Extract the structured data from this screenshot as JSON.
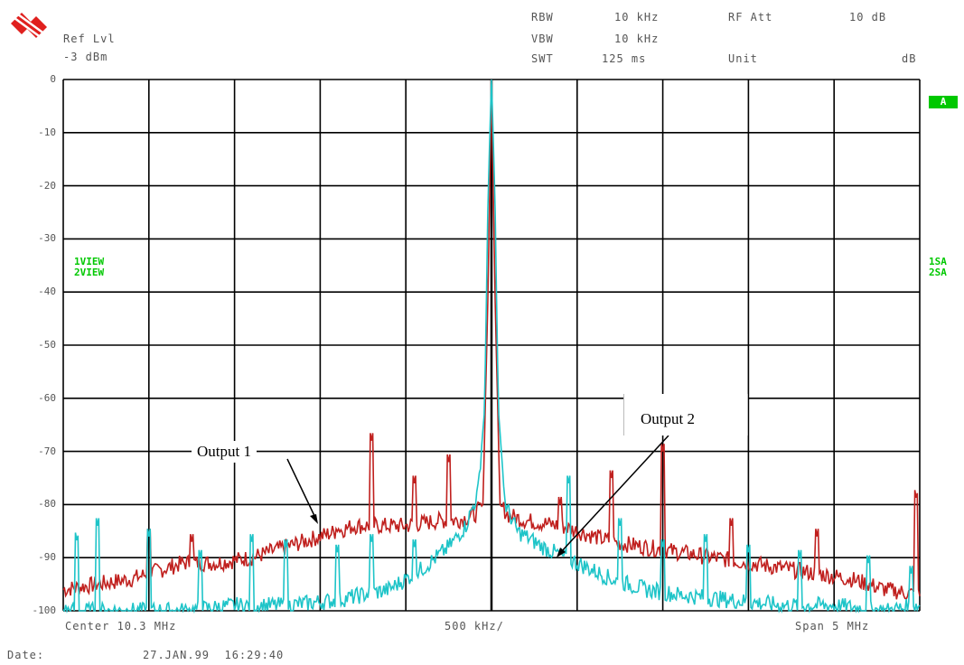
{
  "header": {
    "ref_label": "Ref Lvl",
    "ref_value": "-3 dBm",
    "rbw_label": "RBW",
    "rbw_value": "10 kHz",
    "vbw_label": "VBW",
    "vbw_value": "10 kHz",
    "swt_label": "SWT",
    "swt_value": "125 ms",
    "rf_att_label": "RF Att",
    "rf_att_value": "10 dB",
    "unit_label": "Unit",
    "unit_value": "dB"
  },
  "side": {
    "trace_a_badge": "A",
    "left_views": [
      "1VIEW",
      "2VIEW"
    ],
    "right_views": [
      "1SA",
      "2SA"
    ]
  },
  "footer": {
    "center": "Center 10.3 MHz",
    "div": "500 kHz/",
    "span": "Span 5 MHz",
    "date_label": "Date:",
    "date_value": "27.JAN.99  16:29:40"
  },
  "annotations": {
    "output1": "Output 1",
    "output2": "Output 2"
  },
  "colors": {
    "output1": "#c0201e",
    "output2": "#1ec4c8",
    "grid": "#000000",
    "green": "#00c800"
  },
  "chart_data": {
    "type": "line",
    "xlabel": "",
    "ylabel": "",
    "x_range_mhz": [
      7.8,
      12.8
    ],
    "ylim": [
      -100,
      0
    ],
    "yticks": [
      "0",
      "-10",
      "-20",
      "-30",
      "-40",
      "-50",
      "-60",
      "-70",
      "-80",
      "-90",
      "-100"
    ],
    "grid": true,
    "series": [
      {
        "name": "Output 1",
        "x": [
          7.8,
          8.0,
          8.2,
          8.3,
          8.5,
          8.7,
          8.9,
          9.1,
          9.3,
          9.5,
          9.6,
          9.8,
          10.0,
          10.1,
          10.2,
          10.25,
          10.28,
          10.3,
          10.32,
          10.35,
          10.4,
          10.5,
          10.7,
          10.9,
          11.0,
          11.2,
          11.4,
          11.6,
          11.8,
          12.0,
          12.2,
          12.4,
          12.6,
          12.8
        ],
        "values": [
          -96,
          -95,
          -94,
          -93,
          -91,
          -91,
          -90,
          -88,
          -86,
          -84,
          -84,
          -84,
          -83,
          -83,
          -82,
          -80,
          -40,
          0,
          -40,
          -80,
          -82,
          -83,
          -84,
          -86,
          -87,
          -88,
          -89,
          -90,
          -91,
          -92,
          -93,
          -94,
          -96,
          -97
        ],
        "spikes": [
          {
            "x": 8.3,
            "y": -86
          },
          {
            "x": 8.55,
            "y": -87
          },
          {
            "x": 9.4,
            "y": -86
          },
          {
            "x": 9.6,
            "y": -68
          },
          {
            "x": 9.85,
            "y": -76
          },
          {
            "x": 10.05,
            "y": -72
          },
          {
            "x": 10.7,
            "y": -80
          },
          {
            "x": 11.0,
            "y": -75
          },
          {
            "x": 11.3,
            "y": -70
          },
          {
            "x": 11.7,
            "y": -84
          },
          {
            "x": 12.2,
            "y": -86
          },
          {
            "x": 12.78,
            "y": -79
          }
        ]
      },
      {
        "name": "Output 2",
        "x": [
          7.8,
          8.0,
          8.2,
          8.5,
          8.8,
          9.1,
          9.4,
          9.7,
          9.9,
          10.05,
          10.15,
          10.22,
          10.26,
          10.28,
          10.3,
          10.32,
          10.34,
          10.38,
          10.45,
          10.6,
          10.8,
          11.0,
          11.2,
          11.4,
          11.7,
          12.0,
          12.3,
          12.6,
          12.8
        ],
        "values": [
          -100,
          -100,
          -100,
          -100,
          -99,
          -99,
          -98,
          -96,
          -92,
          -88,
          -84,
          -78,
          -62,
          -22,
          0,
          -22,
          -62,
          -80,
          -85,
          -88,
          -91,
          -94,
          -96,
          -97,
          -98,
          -99,
          -99,
          -100,
          -99
        ],
        "spikes": [
          {
            "x": 7.88,
            "y": -87
          },
          {
            "x": 8.0,
            "y": -84
          },
          {
            "x": 8.3,
            "y": -86
          },
          {
            "x": 8.6,
            "y": -90
          },
          {
            "x": 8.9,
            "y": -87
          },
          {
            "x": 9.1,
            "y": -88
          },
          {
            "x": 9.4,
            "y": -89
          },
          {
            "x": 9.6,
            "y": -87
          },
          {
            "x": 9.85,
            "y": -88
          },
          {
            "x": 10.75,
            "y": -76
          },
          {
            "x": 11.05,
            "y": -84
          },
          {
            "x": 11.3,
            "y": -88
          },
          {
            "x": 11.55,
            "y": -87
          },
          {
            "x": 11.8,
            "y": -89
          },
          {
            "x": 12.1,
            "y": -90
          },
          {
            "x": 12.5,
            "y": -91
          },
          {
            "x": 12.75,
            "y": -93
          }
        ]
      }
    ]
  }
}
